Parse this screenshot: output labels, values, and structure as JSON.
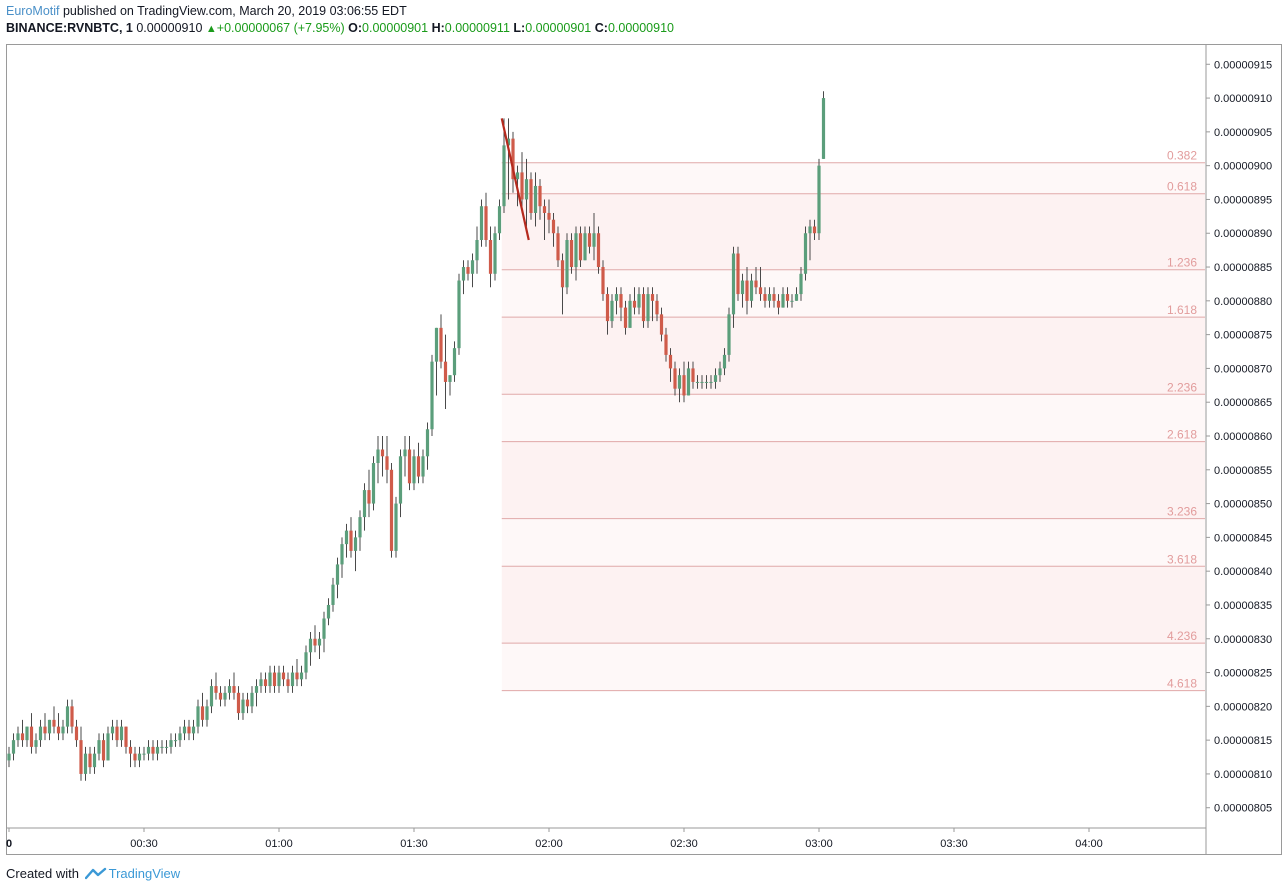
{
  "header": {
    "author": "EuroMotif",
    "published_text": "published on TradingView.com, March 20, 2019 03:06:55 EDT",
    "symbol": "BINANCE:RVNBTC, 1",
    "last": "0.00000910",
    "change_icon": "triangle-up-icon",
    "change": "+0.00000067 (+7.95%)",
    "o_label": "O:",
    "o_value": "0.00000901",
    "h_label": "H:",
    "h_value": "0.00000911",
    "l_label": "L:",
    "l_value": "0.00000901",
    "c_label": "C:",
    "c_value": "0.00000910"
  },
  "footer": {
    "created_with": "Created with",
    "brand": "TradingView",
    "logo_icon": "tradingview-logo-icon"
  },
  "colors": {
    "up": "#5b9e7b",
    "down": "#cf5b4a",
    "fib_line": "#e0a9a9",
    "fib_label": "#e29c9c",
    "fib_fill": "#fdf2f2",
    "trend_line": "#b52a1e",
    "brand": "#4a90c8"
  },
  "chart_data": {
    "type": "candlestick",
    "interval": "1",
    "y_axis": {
      "min": 8.02e-06,
      "max": 9.18e-06,
      "ticks": [
        "0.00000915",
        "0.00000910",
        "0.00000905",
        "0.00000900",
        "0.00000895",
        "0.00000890",
        "0.00000885",
        "0.00000880",
        "0.00000875",
        "0.00000870",
        "0.00000865",
        "0.00000860",
        "0.00000855",
        "0.00000850",
        "0.00000845",
        "0.00000840",
        "0.00000835",
        "0.00000830",
        "0.00000825",
        "0.00000820",
        "0.00000815",
        "0.00000810",
        "0.00000805"
      ]
    },
    "x_axis": {
      "ticks": [
        {
          "label": "0",
          "min": 0
        },
        {
          "label": "00:30",
          "min": 30
        },
        {
          "label": "01:00",
          "min": 60
        },
        {
          "label": "01:30",
          "min": 90
        },
        {
          "label": "02:00",
          "min": 120
        },
        {
          "label": "02:30",
          "min": 150
        },
        {
          "label": "03:00",
          "min": 180
        },
        {
          "label": "03:30",
          "min": 210
        },
        {
          "label": "04:00",
          "min": 240
        }
      ],
      "range_minutes": [
        0,
        266
      ]
    },
    "candles_note": "minute, open, high, low, close (prices in units of 1e-8 BTC)",
    "candles": [
      [
        0,
        812,
        814,
        811,
        813
      ],
      [
        1,
        813,
        816,
        812,
        815
      ],
      [
        2,
        815,
        817,
        814,
        816
      ],
      [
        3,
        816,
        818,
        814,
        815
      ],
      [
        4,
        815,
        817,
        814,
        817
      ],
      [
        5,
        817,
        819,
        813,
        814
      ],
      [
        6,
        814,
        816,
        813,
        815
      ],
      [
        7,
        815,
        818,
        814,
        817
      ],
      [
        8,
        817,
        819,
        815,
        816
      ],
      [
        9,
        816,
        818,
        815,
        818
      ],
      [
        10,
        818,
        820,
        816,
        817
      ],
      [
        11,
        817,
        819,
        815,
        816
      ],
      [
        12,
        816,
        818,
        815,
        817
      ],
      [
        13,
        817,
        821,
        816,
        820
      ],
      [
        14,
        820,
        821,
        816,
        817
      ],
      [
        15,
        817,
        818,
        814,
        815
      ],
      [
        16,
        815,
        817,
        809,
        810
      ],
      [
        17,
        810,
        814,
        809,
        813
      ],
      [
        18,
        813,
        814,
        810,
        811
      ],
      [
        19,
        811,
        814,
        810,
        813
      ],
      [
        20,
        813,
        816,
        812,
        815
      ],
      [
        21,
        815,
        816,
        811,
        812
      ],
      [
        22,
        812,
        817,
        812,
        816
      ],
      [
        23,
        816,
        818,
        815,
        817
      ],
      [
        24,
        817,
        818,
        814,
        815
      ],
      [
        25,
        815,
        818,
        814,
        817
      ],
      [
        26,
        817,
        817,
        813,
        814
      ],
      [
        27,
        814,
        815,
        811,
        813
      ],
      [
        28,
        813,
        814,
        811,
        812
      ],
      [
        29,
        812,
        814,
        811,
        813
      ],
      [
        30,
        813,
        814,
        812,
        813
      ],
      [
        31,
        813,
        815,
        812,
        814
      ],
      [
        32,
        814,
        815,
        812,
        813
      ],
      [
        33,
        813,
        815,
        812,
        814
      ],
      [
        34,
        814,
        815,
        813,
        814
      ],
      [
        35,
        814,
        815,
        813,
        814
      ],
      [
        36,
        814,
        816,
        813,
        815
      ],
      [
        37,
        815,
        816,
        814,
        815
      ],
      [
        38,
        815,
        817,
        814,
        816
      ],
      [
        39,
        816,
        818,
        815,
        817
      ],
      [
        40,
        817,
        818,
        815,
        816
      ],
      [
        41,
        816,
        818,
        815,
        817
      ],
      [
        42,
        817,
        821,
        816,
        820
      ],
      [
        43,
        820,
        822,
        817,
        818
      ],
      [
        44,
        818,
        821,
        817,
        820
      ],
      [
        45,
        820,
        824,
        819,
        823
      ],
      [
        46,
        823,
        825,
        821,
        822
      ],
      [
        47,
        822,
        823,
        820,
        821
      ],
      [
        48,
        821,
        823,
        820,
        822
      ],
      [
        49,
        822,
        824,
        821,
        823
      ],
      [
        50,
        823,
        825,
        821,
        822
      ],
      [
        51,
        822,
        823,
        818,
        819
      ],
      [
        52,
        819,
        822,
        818,
        821
      ],
      [
        53,
        821,
        822,
        819,
        820
      ],
      [
        54,
        820,
        823,
        819,
        822
      ],
      [
        55,
        822,
        824,
        820,
        823
      ],
      [
        56,
        823,
        825,
        822,
        824
      ],
      [
        57,
        824,
        825,
        822,
        823
      ],
      [
        58,
        823,
        826,
        822,
        825
      ],
      [
        59,
        825,
        826,
        822,
        823
      ],
      [
        60,
        823,
        826,
        822,
        825
      ],
      [
        61,
        825,
        826,
        823,
        824
      ],
      [
        62,
        824,
        825,
        822,
        823
      ],
      [
        63,
        823,
        826,
        822,
        825
      ],
      [
        64,
        825,
        827,
        823,
        824
      ],
      [
        65,
        824,
        826,
        823,
        825
      ],
      [
        66,
        825,
        829,
        824,
        828
      ],
      [
        67,
        828,
        831,
        826,
        830
      ],
      [
        68,
        830,
        832,
        828,
        829
      ],
      [
        69,
        829,
        831,
        827,
        830
      ],
      [
        70,
        830,
        834,
        828,
        833
      ],
      [
        71,
        833,
        836,
        832,
        835
      ],
      [
        72,
        835,
        839,
        834,
        838
      ],
      [
        73,
        838,
        842,
        836,
        841
      ],
      [
        74,
        841,
        845,
        839,
        844
      ],
      [
        75,
        844,
        847,
        842,
        846
      ],
      [
        76,
        846,
        848,
        842,
        843
      ],
      [
        77,
        843,
        846,
        840,
        845
      ],
      [
        78,
        845,
        849,
        843,
        848
      ],
      [
        79,
        848,
        853,
        846,
        852
      ],
      [
        80,
        852,
        855,
        848,
        850
      ],
      [
        81,
        850,
        857,
        849,
        856
      ],
      [
        82,
        856,
        860,
        853,
        858
      ],
      [
        83,
        858,
        860,
        854,
        857
      ],
      [
        84,
        857,
        860,
        853,
        855
      ],
      [
        85,
        855,
        856,
        842,
        843
      ],
      [
        86,
        843,
        851,
        842,
        850
      ],
      [
        87,
        850,
        858,
        848,
        857
      ],
      [
        88,
        857,
        860,
        854,
        858
      ],
      [
        89,
        858,
        860,
        852,
        853
      ],
      [
        90,
        853,
        858,
        852,
        857
      ],
      [
        91,
        857,
        859,
        853,
        854
      ],
      [
        92,
        854,
        858,
        853,
        857
      ],
      [
        93,
        857,
        862,
        855,
        861
      ],
      [
        94,
        861,
        872,
        860,
        871
      ],
      [
        95,
        871,
        876,
        866,
        876
      ],
      [
        96,
        876,
        878,
        870,
        871
      ],
      [
        97,
        871,
        875,
        864,
        868
      ],
      [
        98,
        868,
        869,
        866,
        869
      ],
      [
        99,
        869,
        874,
        868,
        873
      ],
      [
        100,
        873,
        884,
        872,
        883
      ],
      [
        101,
        883,
        886,
        881,
        885
      ],
      [
        102,
        885,
        886,
        883,
        884
      ],
      [
        103,
        884,
        887,
        882,
        886
      ],
      [
        104,
        886,
        891,
        884,
        889
      ],
      [
        105,
        889,
        895,
        888,
        894
      ],
      [
        106,
        894,
        896,
        888,
        889
      ],
      [
        107,
        889,
        891,
        882,
        884
      ],
      [
        108,
        884,
        891,
        883,
        890
      ],
      [
        109,
        890,
        895,
        889,
        894
      ],
      [
        110,
        894,
        907,
        893,
        903
      ],
      [
        111,
        903,
        907,
        895,
        904
      ],
      [
        112,
        904,
        905,
        896,
        898
      ],
      [
        113,
        898,
        900,
        894,
        899
      ],
      [
        114,
        899,
        902,
        893,
        895
      ],
      [
        115,
        895,
        901,
        891,
        898
      ],
      [
        116,
        898,
        899,
        892,
        893
      ],
      [
        117,
        893,
        899,
        891,
        897
      ],
      [
        118,
        897,
        898,
        892,
        894
      ],
      [
        119,
        894,
        895,
        889,
        893
      ],
      [
        120,
        893,
        895,
        890,
        892
      ],
      [
        121,
        892,
        893,
        888,
        890
      ],
      [
        122,
        890,
        891,
        885,
        886
      ],
      [
        123,
        886,
        887,
        878,
        882
      ],
      [
        124,
        882,
        890,
        881,
        889
      ],
      [
        125,
        889,
        890,
        884,
        885
      ],
      [
        126,
        885,
        891,
        883,
        890
      ],
      [
        127,
        890,
        891,
        885,
        886
      ],
      [
        128,
        886,
        891,
        886,
        890
      ],
      [
        129,
        890,
        891,
        887,
        888
      ],
      [
        130,
        888,
        893,
        886,
        890
      ],
      [
        131,
        890,
        891,
        884,
        885
      ],
      [
        132,
        885,
        886,
        880,
        881
      ],
      [
        133,
        881,
        882,
        875,
        877
      ],
      [
        134,
        877,
        881,
        876,
        880
      ],
      [
        135,
        880,
        882,
        878,
        881
      ],
      [
        136,
        881,
        882,
        877,
        879
      ],
      [
        137,
        879,
        880,
        875,
        876
      ],
      [
        138,
        876,
        881,
        876,
        880
      ],
      [
        139,
        880,
        882,
        878,
        879
      ],
      [
        140,
        879,
        882,
        878,
        881
      ],
      [
        141,
        881,
        882,
        876,
        877
      ],
      [
        142,
        877,
        882,
        876,
        881
      ],
      [
        143,
        881,
        882,
        877,
        880
      ],
      [
        144,
        880,
        881,
        877,
        878
      ],
      [
        145,
        878,
        879,
        874,
        875
      ],
      [
        146,
        875,
        876,
        871,
        872
      ],
      [
        147,
        872,
        873,
        868,
        870
      ],
      [
        148,
        870,
        871,
        866,
        867
      ],
      [
        149,
        867,
        870,
        865,
        869
      ],
      [
        150,
        869,
        871,
        865,
        866
      ],
      [
        151,
        866,
        871,
        866,
        870
      ],
      [
        152,
        870,
        871,
        867,
        868
      ],
      [
        153,
        868,
        869,
        867,
        868
      ],
      [
        154,
        868,
        869,
        867,
        868
      ],
      [
        155,
        868,
        869,
        867,
        868
      ],
      [
        156,
        868,
        869,
        867,
        868
      ],
      [
        157,
        868,
        870,
        867,
        869
      ],
      [
        158,
        869,
        871,
        868,
        870
      ],
      [
        159,
        870,
        873,
        869,
        872
      ],
      [
        160,
        872,
        879,
        871,
        878
      ],
      [
        161,
        878,
        888,
        876,
        887
      ],
      [
        162,
        887,
        888,
        880,
        881
      ],
      [
        163,
        881,
        884,
        879,
        883
      ],
      [
        164,
        883,
        885,
        878,
        880
      ],
      [
        165,
        880,
        884,
        879,
        883
      ],
      [
        166,
        883,
        885,
        881,
        882
      ],
      [
        167,
        882,
        885,
        880,
        881
      ],
      [
        168,
        881,
        882,
        879,
        880
      ],
      [
        169,
        880,
        882,
        879,
        881
      ],
      [
        170,
        881,
        882,
        879,
        880
      ],
      [
        171,
        880,
        881,
        878,
        879
      ],
      [
        172,
        879,
        882,
        879,
        881
      ],
      [
        173,
        881,
        882,
        879,
        880
      ],
      [
        174,
        880,
        881,
        879,
        880
      ],
      [
        175,
        880,
        882,
        880,
        881
      ],
      [
        176,
        881,
        885,
        880,
        884
      ],
      [
        177,
        884,
        891,
        883,
        890
      ],
      [
        178,
        890,
        892,
        886,
        891
      ],
      [
        179,
        891,
        892,
        889,
        890
      ],
      [
        180,
        890,
        901,
        889,
        900
      ],
      [
        181,
        901,
        911,
        901,
        910
      ]
    ],
    "fibonacci_extension": {
      "levels": [
        {
          "label": "0.382",
          "price": 9.0043e-06
        },
        {
          "label": "0.618",
          "price": 8.9585e-06
        },
        {
          "label": "1.236",
          "price": 8.846e-06
        },
        {
          "label": "1.618",
          "price": 8.7759e-06
        },
        {
          "label": "2.236",
          "price": 8.6617e-06
        },
        {
          "label": "2.618",
          "price": 8.5917e-06
        },
        {
          "label": "3.236",
          "price": 8.4777e-06
        },
        {
          "label": "3.618",
          "price": 8.4072e-06
        },
        {
          "label": "4.236",
          "price": 8.2935e-06
        },
        {
          "label": "4.618",
          "price": 8.2232e-06
        }
      ],
      "start_minute": 109.5
    },
    "trend_line": {
      "from": {
        "minute": 109.5,
        "price": 9.07e-06
      },
      "to": {
        "minute": 115.5,
        "price": 8.89e-06
      }
    }
  }
}
